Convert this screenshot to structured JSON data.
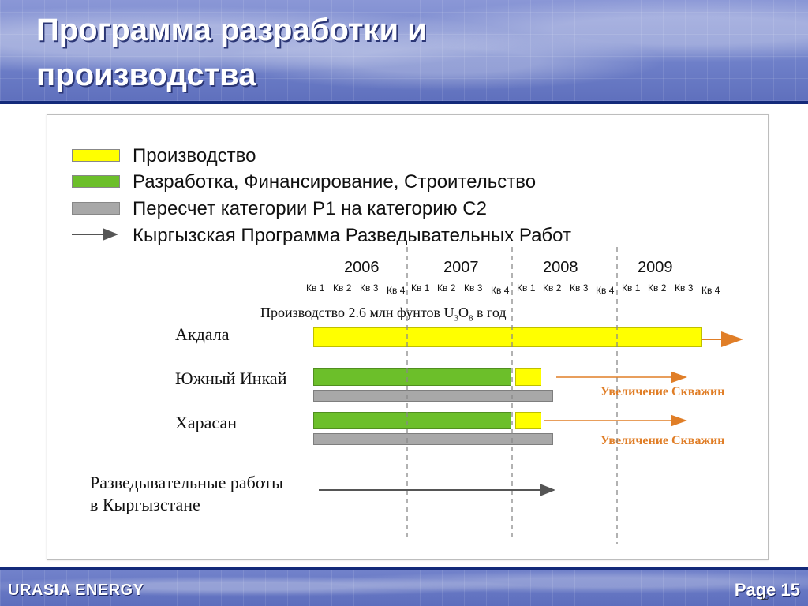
{
  "slide": {
    "title_line1": "Программа разработки и",
    "title_line2": "производства",
    "brand": "URASIA ENERGY",
    "page_label": "Page 15",
    "page_small": "15"
  },
  "legend": [
    {
      "label": "Производство",
      "color": "#ffff00"
    },
    {
      "label": "Разработка, Финансирование, Строительство",
      "color": "#6cbf2a"
    },
    {
      "label": "Пересчет  категории Р1 на категорию С2",
      "color": "#a8a8a8"
    },
    {
      "label": "Кыргызская Программа Разведывательных Работ",
      "icon": "arrow-icon"
    }
  ],
  "timeline": {
    "years": [
      "2006",
      "2007",
      "2008",
      "2009"
    ],
    "quarters": [
      "Кв 1",
      "Кв 2",
      "Кв 3",
      "Кв 4",
      "Кв 1",
      "Кв 2",
      "Кв 3",
      "Кв 4",
      "Кв 1",
      "Кв 2",
      "Кв 3",
      "Кв 4",
      "Кв 1",
      "Кв 2",
      "Кв 3",
      "Кв 4"
    ]
  },
  "production_note": {
    "prefix": "Производство 2.6 млн фунтов U",
    "sub1": "3",
    "mid": "O",
    "sub2": "8",
    "suffix": " в год"
  },
  "rows": {
    "akdala": "Акдала",
    "south_inkai": "Южный Инкай",
    "harasan": "Харасан",
    "exploration_line1": "Разведывательные работы",
    "exploration_line2": " в Кыргызстане"
  },
  "annotations": {
    "increase_wells": "Увеличение Скважин"
  },
  "colors": {
    "production": "#ffff00",
    "development": "#6cbf2a",
    "reclassification": "#a8a8a8",
    "annotation_orange": "#e07e27",
    "header_blue": "#142a7a"
  }
}
